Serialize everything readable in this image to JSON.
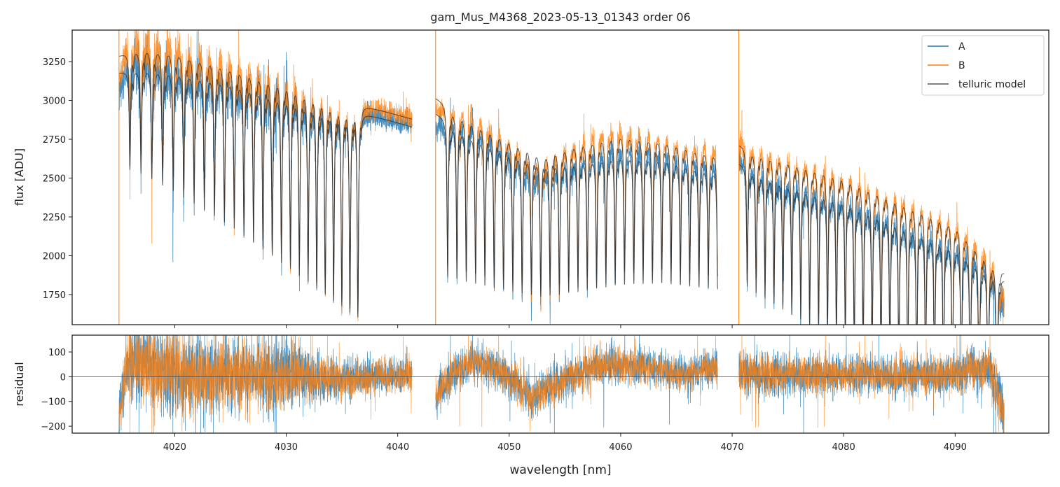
{
  "chart_data": {
    "type": "line",
    "title": "gam_Mus_M4368_2023-05-13_01343  order 06",
    "xlabel": "wavelength [nm]",
    "panels": [
      {
        "name": "flux",
        "ylabel": "flux [ADU]",
        "ylim": [
          1556,
          3453
        ],
        "yticks": [
          1750,
          2000,
          2250,
          2500,
          2750,
          3000,
          3250
        ]
      },
      {
        "name": "residual",
        "ylabel": "residual",
        "ylim": [
          -228,
          168
        ],
        "yticks": [
          -200,
          -100,
          0,
          100
        ],
        "zero_line": true
      }
    ],
    "xlim": [
      4010.8,
      4098.4
    ],
    "xticks": [
      4020,
      4030,
      4040,
      4050,
      4060,
      4070,
      4080,
      4090
    ],
    "legend": {
      "placement": "top-right",
      "entries": [
        "A",
        "B",
        "telluric model"
      ]
    },
    "colors": {
      "A": "#1f77b4",
      "B": "#ff7f0e",
      "model": "#333333"
    },
    "segments": [
      {
        "range": [
          4015.0,
          4041.3
        ],
        "continuum_x": [
          4015,
          4017,
          4020,
          4025,
          4030,
          4035,
          4041.3
        ],
        "continuum_A": [
          3180,
          3215,
          3200,
          3150,
          3055,
          2960,
          2830
        ],
        "continuum_B": [
          3290,
          3345,
          3330,
          3250,
          3150,
          3010,
          2880
        ],
        "lines": {
          "start": 4015.98,
          "step": 0.99,
          "step_change": -0.012,
          "count": 25,
          "depth": [
            0.2,
            0.45
          ]
        },
        "residual_x": [
          4015,
          4016,
          4020,
          4030,
          4035,
          4041.3
        ],
        "residual_mean": [
          -150,
          80,
          10,
          10,
          -10,
          10
        ],
        "residual_noise": [
          60,
          90,
          90,
          70,
          40,
          35
        ]
      },
      {
        "range": [
          4043.4,
          4068.7
        ],
        "continuum_x": [
          4043.4,
          4046,
          4050,
          4053,
          4056,
          4060,
          4064,
          4068.7
        ],
        "continuum_A": [
          2920,
          2830,
          2700,
          2620,
          2640,
          2680,
          2660,
          2560
        ],
        "continuum_B": [
          3020,
          2930,
          2790,
          2680,
          2760,
          2820,
          2780,
          2680
        ],
        "lines": {
          "start": 4044.48,
          "step": 0.835,
          "step_change": 0,
          "count": 30,
          "depth": [
            0.35,
            0.3
          ]
        },
        "residual_x": [
          4043.4,
          4045,
          4047,
          4050,
          4052,
          4054,
          4058,
          4062,
          4066,
          4068.7
        ],
        "residual_mean": [
          -90,
          20,
          70,
          0,
          -90,
          -30,
          50,
          40,
          10,
          40
        ],
        "residual_noise": [
          40,
          40,
          40,
          40,
          40,
          40,
          40,
          35,
          35,
          35
        ]
      },
      {
        "range": [
          4070.6,
          4094.4
        ],
        "continuum_x": [
          4070.6,
          4075,
          4080,
          4085,
          4090,
          4094.4
        ],
        "continuum_A": [
          2600,
          2500,
          2400,
          2250,
          2100,
          1850
        ],
        "continuum_B": [
          2720,
          2660,
          2560,
          2410,
          2260,
          1900
        ],
        "lines": {
          "start": 4071.35,
          "step": 0.8,
          "step_change": 0,
          "count": 29,
          "depth": [
            0.3,
            0.55
          ]
        },
        "residual_x": [
          4070.6,
          4080,
          4090,
          4093,
          4094.4
        ],
        "residual_mean": [
          10,
          5,
          10,
          40,
          -150
        ],
        "residual_noise": [
          45,
          40,
          40,
          45,
          60
        ]
      }
    ]
  }
}
